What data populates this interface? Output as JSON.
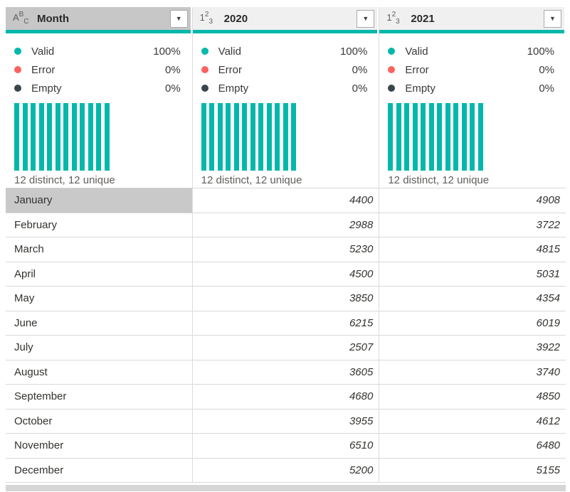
{
  "icons": {
    "dropdown": "▼"
  },
  "colors": {
    "accent_teal": "#01B8AA",
    "error_red": "#FD625E",
    "empty_dark": "#374649",
    "selected_gray": "#C7C7C7",
    "header_bg": "#F1F0F0",
    "row_border": "#D8D8D8"
  },
  "columns": [
    {
      "name": "Month",
      "type": "text",
      "icon": {
        "p1": "A",
        "p2": "B",
        "p3": "C"
      },
      "selected": true,
      "quality": [
        {
          "label": "Valid",
          "pct": "100%",
          "color": "#01B8AA"
        },
        {
          "label": "Error",
          "pct": "0%",
          "color": "#FD625E"
        },
        {
          "label": "Empty",
          "pct": "0%",
          "color": "#374649"
        }
      ],
      "distribution_bars": [
        1,
        1,
        1,
        1,
        1,
        1,
        1,
        1,
        1,
        1,
        1,
        1
      ],
      "note": "12 distinct, 12 unique"
    },
    {
      "name": "2020",
      "type": "number",
      "icon": {
        "p1": "1",
        "p2": "2",
        "p3": "3"
      },
      "selected": false,
      "quality": [
        {
          "label": "Valid",
          "pct": "100%",
          "color": "#01B8AA"
        },
        {
          "label": "Error",
          "pct": "0%",
          "color": "#FD625E"
        },
        {
          "label": "Empty",
          "pct": "0%",
          "color": "#374649"
        }
      ],
      "distribution_bars": [
        1,
        1,
        1,
        1,
        1,
        1,
        1,
        1,
        1,
        1,
        1,
        1
      ],
      "note": "12 distinct, 12 unique"
    },
    {
      "name": "2021",
      "type": "number",
      "icon": {
        "p1": "1",
        "p2": "2",
        "p3": "3"
      },
      "selected": false,
      "quality": [
        {
          "label": "Valid",
          "pct": "100%",
          "color": "#01B8AA"
        },
        {
          "label": "Error",
          "pct": "0%",
          "color": "#FD625E"
        },
        {
          "label": "Empty",
          "pct": "0%",
          "color": "#374649"
        }
      ],
      "distribution_bars": [
        1,
        1,
        1,
        1,
        1,
        1,
        1,
        1,
        1,
        1,
        1,
        1
      ],
      "note": "12 distinct, 12 unique"
    }
  ],
  "rows": [
    {
      "month": "January",
      "v2020": "4400",
      "v2021": "4908",
      "selected": true
    },
    {
      "month": "February",
      "v2020": "2988",
      "v2021": "3722"
    },
    {
      "month": "March",
      "v2020": "5230",
      "v2021": "4815"
    },
    {
      "month": "April",
      "v2020": "4500",
      "v2021": "5031"
    },
    {
      "month": "May",
      "v2020": "3850",
      "v2021": "4354"
    },
    {
      "month": "June",
      "v2020": "6215",
      "v2021": "6019"
    },
    {
      "month": "July",
      "v2020": "2507",
      "v2021": "3922"
    },
    {
      "month": "August",
      "v2020": "3605",
      "v2021": "3740"
    },
    {
      "month": "September",
      "v2020": "4680",
      "v2021": "4850"
    },
    {
      "month": "October",
      "v2020": "3955",
      "v2021": "4612"
    },
    {
      "month": "November",
      "v2020": "6510",
      "v2021": "6480"
    },
    {
      "month": "December",
      "v2020": "5200",
      "v2021": "5155"
    }
  ]
}
